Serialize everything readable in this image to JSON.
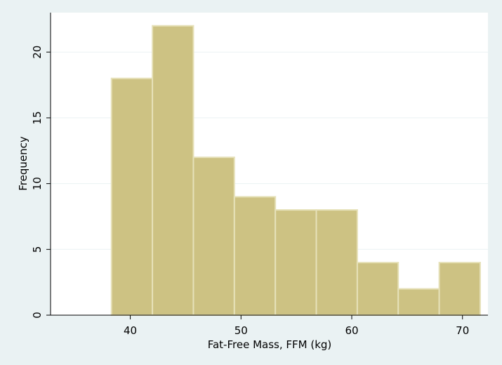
{
  "colors": {
    "background": "#eaf2f3",
    "plot_background": "#ffffff",
    "bar_fill": "#cdc283",
    "bar_outline": "#e6e1b9",
    "gridline": "#eaf2f3"
  },
  "chart_data": {
    "type": "bar",
    "subtype": "histogram",
    "title": "",
    "xlabel": "Fat-Free Mass, FFM (kg)",
    "ylabel": "Frequency",
    "xlim": [
      32.8,
      72.3
    ],
    "ylim": [
      0,
      23
    ],
    "xticks": [
      40,
      50,
      60,
      70
    ],
    "yticks": [
      0,
      5,
      10,
      15,
      20
    ],
    "grid": true,
    "bins": [
      {
        "start": 38.3,
        "end": 42.0,
        "value": 18
      },
      {
        "start": 42.0,
        "end": 45.7,
        "value": 22
      },
      {
        "start": 45.7,
        "end": 49.4,
        "value": 12
      },
      {
        "start": 49.4,
        "end": 53.1,
        "value": 9
      },
      {
        "start": 53.1,
        "end": 56.8,
        "value": 8
      },
      {
        "start": 56.8,
        "end": 60.5,
        "value": 8
      },
      {
        "start": 60.5,
        "end": 64.2,
        "value": 4
      },
      {
        "start": 64.2,
        "end": 67.9,
        "value": 2
      },
      {
        "start": 67.9,
        "end": 71.6,
        "value": 4
      }
    ]
  }
}
